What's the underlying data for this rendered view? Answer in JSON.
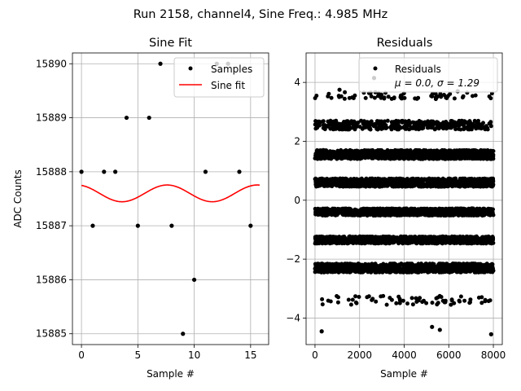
{
  "figure": {
    "suptitle": "Run 2158, channel4, Sine Freq.: 4.985 MHz"
  },
  "chart_data": [
    {
      "type": "scatter",
      "title": "Sine Fit",
      "xlabel": "Sample #",
      "ylabel": "ADC Counts",
      "xlim": [
        -0.8,
        16.6
      ],
      "ylim": [
        15884.8,
        15890.2
      ],
      "xticks": [
        0,
        5,
        10,
        15
      ],
      "yticks": [
        15885,
        15886,
        15887,
        15888,
        15889,
        15890
      ],
      "grid": true,
      "legend_position": "upper right",
      "series": [
        {
          "name": "Samples",
          "kind": "scatter",
          "color": "#000000",
          "x": [
            0,
            1,
            2,
            3,
            4,
            5,
            6,
            7,
            8,
            9,
            10,
            11,
            12,
            13,
            14,
            15
          ],
          "y": [
            15888,
            15887,
            15888,
            15888,
            15889,
            15887,
            15889,
            15890,
            15887,
            15885,
            15886,
            15888,
            15890,
            15890,
            15888,
            15887
          ]
        },
        {
          "name": "Sine fit",
          "kind": "line",
          "color": "#ff0000",
          "fit": {
            "offset": 15887.6,
            "amplitude": 0.155,
            "period": 8.0,
            "peak_at": 7.6,
            "x_range": [
              0,
              15.8
            ]
          }
        }
      ]
    },
    {
      "type": "scatter",
      "title": "Residuals",
      "xlabel": "Sample #",
      "ylabel": "",
      "xlim": [
        -400,
        8400
      ],
      "ylim": [
        -4.9,
        5.0
      ],
      "xticks": [
        0,
        2000,
        4000,
        6000,
        8000
      ],
      "yticks": [
        -4,
        -2,
        0,
        2,
        4
      ],
      "grid": true,
      "legend_position": "upper right",
      "legend_lines": [
        "Residuals",
        "μ = 0.0, σ = 1.29"
      ],
      "series": [
        {
          "name": "Residuals",
          "color": "#000000",
          "x_range": [
            0,
            8000
          ],
          "dense_bands": [
            {
              "center": -2.3,
              "halfwidth": 0.15
            },
            {
              "center": -1.35,
              "halfwidth": 0.12
            },
            {
              "center": -0.4,
              "halfwidth": 0.12
            },
            {
              "center": 0.6,
              "halfwidth": 0.14
            },
            {
              "center": 1.55,
              "halfwidth": 0.15
            }
          ],
          "sparse_bands": [
            {
              "center": 2.55,
              "halfwidth": 0.15
            },
            {
              "center": -3.4,
              "halfwidth": 0.15
            },
            {
              "center": 3.55,
              "halfwidth": 0.12
            }
          ],
          "outliers": [
            {
              "x": 2650,
              "y": 4.15
            },
            {
              "x": 300,
              "y": -4.45
            },
            {
              "x": 5250,
              "y": -4.3
            },
            {
              "x": 5600,
              "y": -4.4
            },
            {
              "x": 7900,
              "y": -4.55
            },
            {
              "x": 1100,
              "y": 3.75
            },
            {
              "x": 6400,
              "y": 3.7
            }
          ]
        }
      ]
    }
  ]
}
